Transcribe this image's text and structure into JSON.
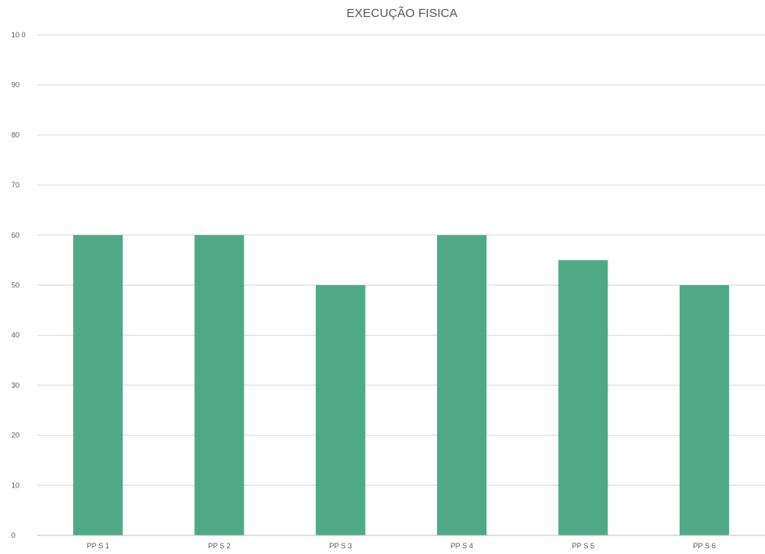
{
  "chart_data": {
    "type": "bar",
    "title": "EXECUÇÃO FISICA",
    "categories": [
      "PP S 1",
      "PP S 2",
      "PP S 3",
      "PP S 4",
      "PP S 5",
      "PP S 6"
    ],
    "series": [
      {
        "values": [
          60,
          60,
          50,
          60,
          55,
          50
        ]
      }
    ],
    "ylim": [
      0,
      100
    ],
    "yticks": [
      0,
      10,
      20,
      30,
      40,
      50,
      60,
      70,
      80,
      90,
      100
    ],
    "ytick_labels": [
      "0",
      "10",
      "20",
      "30",
      "40",
      "50",
      "60",
      "70",
      "80",
      "90",
      "10 0"
    ],
    "xlabel": "",
    "ylabel": "",
    "grid": true,
    "legend": "none",
    "bar_color": "#4fa987",
    "grid_color": "#d9d9d9",
    "text_color": "#595959"
  }
}
